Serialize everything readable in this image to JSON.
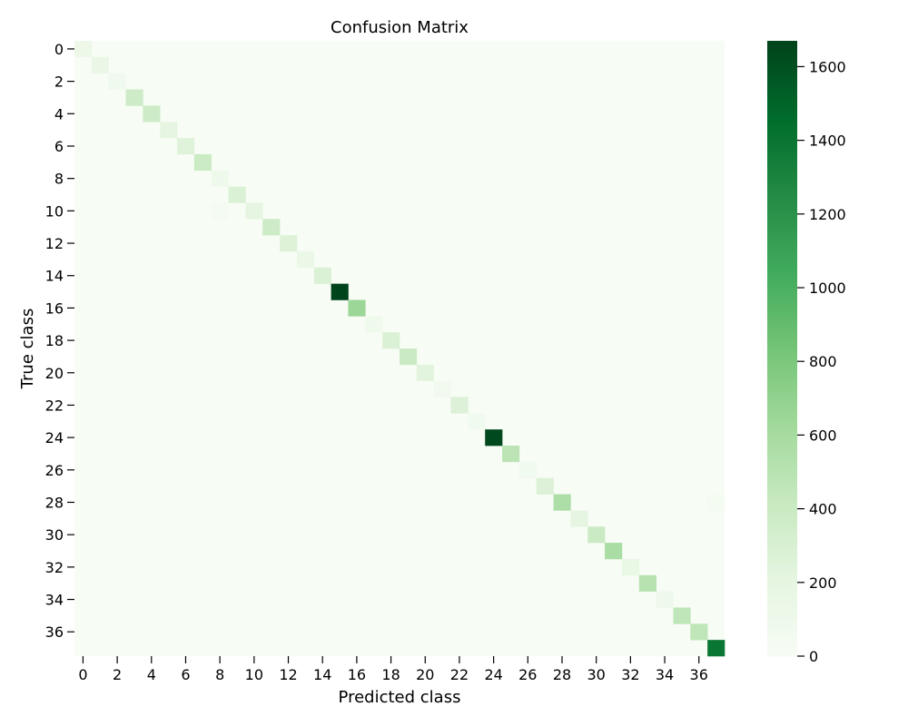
{
  "chart_data": {
    "type": "heatmap",
    "title": "Confusion Matrix",
    "xlabel": "Predicted class",
    "ylabel": "True class",
    "n_classes": 38,
    "x_ticks": [
      0,
      2,
      4,
      6,
      8,
      10,
      12,
      14,
      16,
      18,
      20,
      22,
      24,
      26,
      28,
      30,
      32,
      34,
      36
    ],
    "y_ticks": [
      0,
      2,
      4,
      6,
      8,
      10,
      12,
      14,
      16,
      18,
      20,
      22,
      24,
      26,
      28,
      30,
      32,
      34,
      36
    ],
    "diagonal": [
      120,
      150,
      80,
      380,
      380,
      200,
      250,
      390,
      100,
      280,
      200,
      380,
      260,
      140,
      280,
      1670,
      650,
      90,
      280,
      400,
      220,
      60,
      270,
      70,
      1650,
      480,
      70,
      270,
      560,
      200,
      400,
      580,
      160,
      500,
      100,
      460,
      460,
      1400
    ],
    "off_diagonal": [
      {
        "row": 10,
        "col": 8,
        "value": 30
      },
      {
        "row": 28,
        "col": 37,
        "value": 40
      }
    ],
    "colormap": "Greens",
    "colormap_min_color": "#f7fcf5",
    "colormap_max_color": "#00441b",
    "colorbar": {
      "min": 0,
      "max": 1670,
      "ticks": [
        0,
        200,
        400,
        600,
        800,
        1000,
        1200,
        1400,
        1600
      ]
    }
  }
}
